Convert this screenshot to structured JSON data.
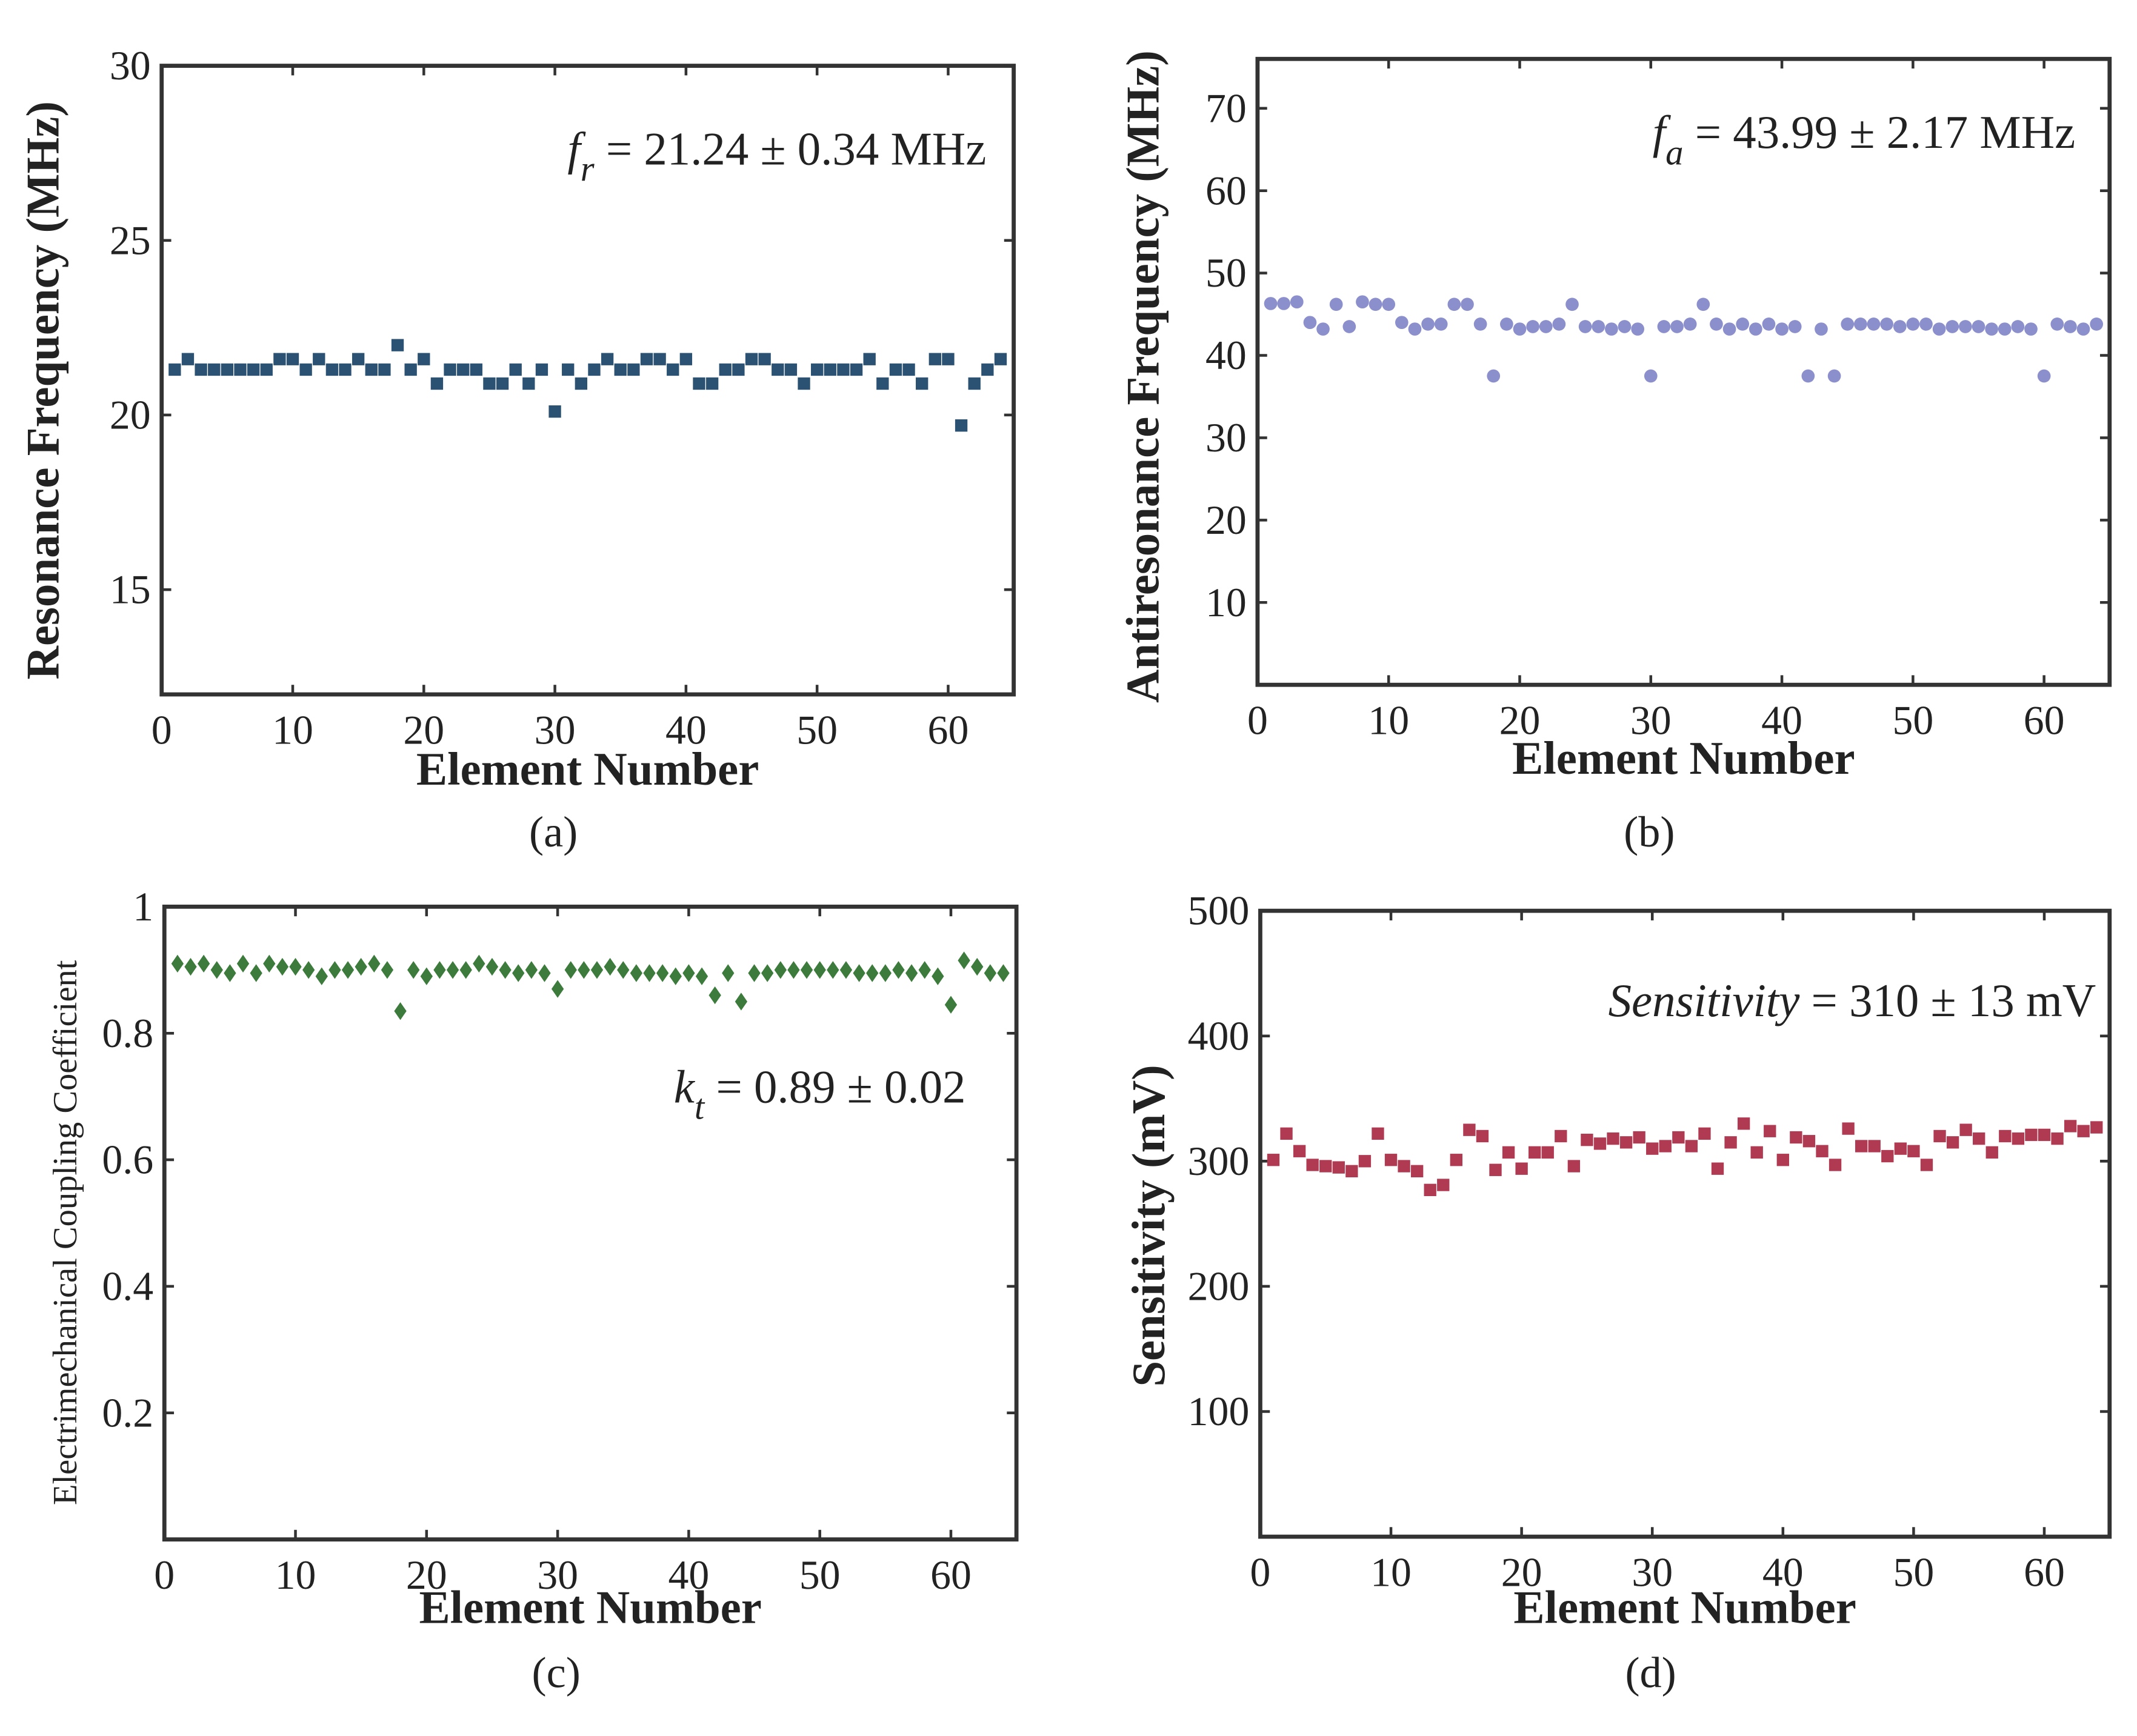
{
  "chart_data": [
    {
      "type": "scatter",
      "marker": "square",
      "color": "#2b5273",
      "ylabel": "Resonance Frequency (MHz)",
      "xlabel": "Element Number",
      "panel_label": "(a)",
      "annotation": {
        "symbol": "f",
        "subscript": "r",
        "text": " = 21.24 ± 0.34 MHz"
      },
      "xlim": [
        0,
        65
      ],
      "xticks": [
        0,
        10,
        20,
        30,
        40,
        50,
        60
      ],
      "ylim": [
        12,
        30
      ],
      "yticks": [
        15,
        20,
        25,
        30
      ],
      "x": [
        1,
        2,
        3,
        4,
        5,
        6,
        7,
        8,
        9,
        10,
        11,
        12,
        13,
        14,
        15,
        16,
        17,
        18,
        19,
        20,
        21,
        22,
        23,
        24,
        25,
        26,
        27,
        28,
        29,
        30,
        31,
        32,
        33,
        34,
        35,
        36,
        37,
        38,
        39,
        40,
        41,
        42,
        43,
        44,
        45,
        46,
        47,
        48,
        49,
        50,
        51,
        52,
        53,
        54,
        55,
        56,
        57,
        58,
        59,
        60,
        61,
        62,
        63,
        64
      ],
      "values": [
        21.3,
        21.6,
        21.3,
        21.3,
        21.3,
        21.3,
        21.3,
        21.3,
        21.6,
        21.6,
        21.3,
        21.6,
        21.3,
        21.3,
        21.6,
        21.3,
        21.3,
        22.0,
        21.3,
        21.6,
        20.9,
        21.3,
        21.3,
        21.3,
        20.9,
        20.9,
        21.3,
        20.9,
        21.3,
        20.1,
        21.3,
        20.9,
        21.3,
        21.6,
        21.3,
        21.3,
        21.6,
        21.6,
        21.3,
        21.6,
        20.9,
        20.9,
        21.3,
        21.3,
        21.6,
        21.6,
        21.3,
        21.3,
        20.9,
        21.3,
        21.3,
        21.3,
        21.3,
        21.6,
        20.9,
        21.3,
        21.3,
        20.9,
        21.6,
        21.6,
        19.7,
        20.9,
        21.3,
        21.6
      ]
    },
    {
      "type": "scatter",
      "marker": "circle",
      "color": "#8b90cc",
      "ylabel": "Antiresonance Frequency (MHz)",
      "xlabel": "Element Number",
      "panel_label": "(b)",
      "annotation": {
        "symbol": "f",
        "subscript": "a",
        "text": " = 43.99 ± 2.17 MHz"
      },
      "xlim": [
        0,
        65
      ],
      "xticks": [
        0,
        10,
        20,
        30,
        40,
        50,
        60
      ],
      "ylim": [
        0,
        76
      ],
      "yticks": [
        10,
        20,
        30,
        40,
        50,
        60,
        70
      ],
      "x": [
        1,
        2,
        3,
        4,
        5,
        6,
        7,
        8,
        9,
        10,
        11,
        12,
        13,
        14,
        15,
        16,
        17,
        18,
        19,
        20,
        21,
        22,
        23,
        24,
        25,
        26,
        27,
        28,
        29,
        30,
        31,
        32,
        33,
        34,
        35,
        36,
        37,
        38,
        39,
        40,
        41,
        42,
        43,
        44,
        45,
        46,
        47,
        48,
        49,
        50,
        51,
        52,
        53,
        54,
        55,
        56,
        57,
        58,
        59,
        60,
        61,
        62,
        63,
        64
      ],
      "values": [
        46.3,
        46.3,
        46.5,
        44,
        43.2,
        46.2,
        43.5,
        46.5,
        46.2,
        46.2,
        44,
        43.2,
        43.8,
        43.8,
        46.2,
        46.2,
        43.8,
        37.5,
        43.8,
        43.2,
        43.5,
        43.5,
        43.8,
        46.2,
        43.5,
        43.5,
        43.2,
        43.5,
        43.2,
        37.5,
        43.5,
        43.5,
        43.8,
        46.2,
        43.8,
        43.2,
        43.8,
        43.2,
        43.8,
        43.2,
        43.5,
        37.5,
        43.2,
        37.5,
        43.8,
        43.8,
        43.8,
        43.8,
        43.5,
        43.8,
        43.8,
        43.2,
        43.5,
        43.5,
        43.5,
        43.2,
        43.2,
        43.5,
        43.2,
        37.5,
        43.8,
        43.5,
        43.2,
        43.8
      ]
    },
    {
      "type": "scatter",
      "marker": "diamond",
      "color": "#3d7b3d",
      "ylabel": "Electrimechanical Coupling Coefficient",
      "xlabel": "Element Number",
      "panel_label": "(c)",
      "annotation": {
        "symbol": "k",
        "subscript": "t",
        "text": " = 0.89 ± 0.02"
      },
      "xlim": [
        0,
        65
      ],
      "xticks": [
        0,
        10,
        20,
        30,
        40,
        50,
        60
      ],
      "ylim": [
        0,
        1
      ],
      "yticks": [
        0.2,
        0.4,
        0.6,
        0.8,
        1
      ],
      "x": [
        1,
        2,
        3,
        4,
        5,
        6,
        7,
        8,
        9,
        10,
        11,
        12,
        13,
        14,
        15,
        16,
        17,
        18,
        19,
        20,
        21,
        22,
        23,
        24,
        25,
        26,
        27,
        28,
        29,
        30,
        31,
        32,
        33,
        34,
        35,
        36,
        37,
        38,
        39,
        40,
        41,
        42,
        43,
        44,
        45,
        46,
        47,
        48,
        49,
        50,
        51,
        52,
        53,
        54,
        55,
        56,
        57,
        58,
        59,
        60,
        61,
        62,
        63,
        64
      ],
      "values": [
        0.91,
        0.905,
        0.91,
        0.9,
        0.895,
        0.91,
        0.895,
        0.91,
        0.905,
        0.905,
        0.9,
        0.89,
        0.9,
        0.9,
        0.905,
        0.91,
        0.9,
        0.835,
        0.9,
        0.89,
        0.9,
        0.9,
        0.9,
        0.91,
        0.905,
        0.9,
        0.895,
        0.9,
        0.895,
        0.87,
        0.9,
        0.9,
        0.9,
        0.905,
        0.9,
        0.895,
        0.895,
        0.895,
        0.89,
        0.895,
        0.89,
        0.86,
        0.895,
        0.85,
        0.895,
        0.895,
        0.9,
        0.9,
        0.9,
        0.9,
        0.9,
        0.9,
        0.895,
        0.895,
        0.895,
        0.9,
        0.895,
        0.9,
        0.89,
        0.845,
        0.915,
        0.905,
        0.895,
        0.895
      ]
    },
    {
      "type": "scatter",
      "marker": "square",
      "color": "#b03a52",
      "ylabel": "Sensitivity (mV)",
      "xlabel": "Element Number",
      "panel_label": "(d)",
      "annotation": {
        "symbol": "Sensitivity",
        "text": " = 310 ± 13 mV"
      },
      "xlim": [
        0,
        65
      ],
      "xticks": [
        0,
        10,
        20,
        30,
        40,
        50,
        60
      ],
      "ylim": [
        0,
        500
      ],
      "yticks": [
        100,
        200,
        300,
        400,
        500
      ],
      "x": [
        1,
        2,
        3,
        4,
        5,
        6,
        7,
        8,
        9,
        10,
        11,
        12,
        13,
        14,
        15,
        16,
        17,
        18,
        19,
        20,
        21,
        22,
        23,
        24,
        25,
        26,
        27,
        28,
        29,
        30,
        31,
        32,
        33,
        34,
        35,
        36,
        37,
        38,
        39,
        40,
        41,
        42,
        43,
        44,
        45,
        46,
        47,
        48,
        49,
        50,
        51,
        52,
        53,
        54,
        55,
        56,
        57,
        58,
        59,
        60,
        61,
        62,
        63,
        64
      ],
      "values": [
        301,
        322,
        308,
        297,
        296,
        295,
        292,
        300,
        322,
        301,
        296,
        292,
        277,
        281,
        301,
        325,
        320,
        293,
        307,
        294,
        307,
        307,
        320,
        296,
        317,
        314,
        318,
        315,
        319,
        310,
        312,
        319,
        312,
        322,
        294,
        315,
        330,
        307,
        324,
        301,
        319,
        316,
        308,
        297,
        326,
        312,
        312,
        304,
        310,
        308,
        297,
        320,
        315,
        325,
        318,
        307,
        320,
        318,
        321,
        321,
        318,
        328,
        324,
        327
      ]
    }
  ]
}
